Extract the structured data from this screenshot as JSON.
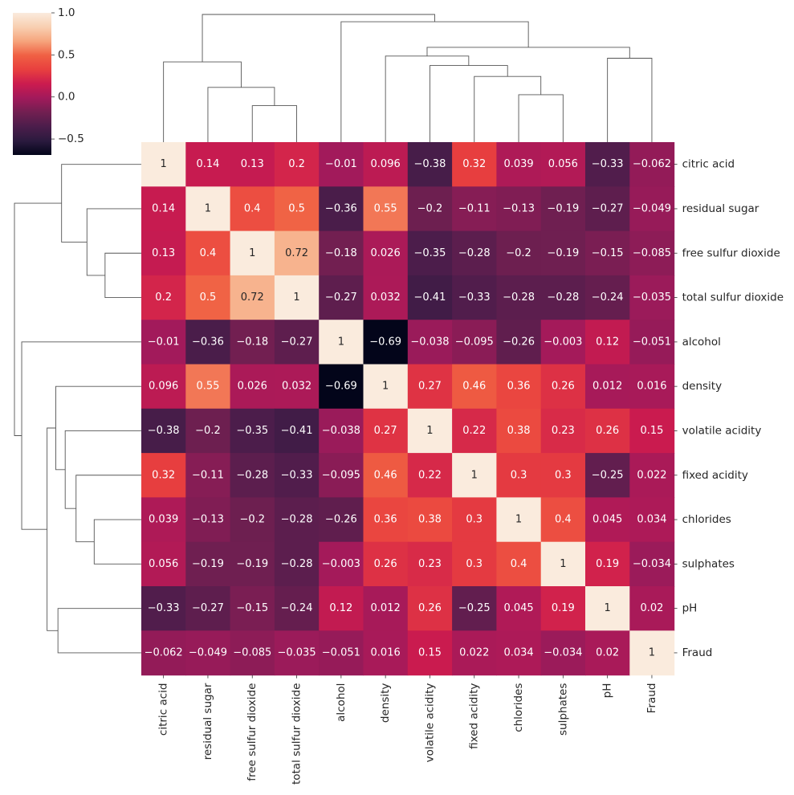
{
  "chart_data": {
    "type": "heatmap",
    "title": "",
    "xlabel": "",
    "ylabel": "",
    "labels": [
      "citric acid",
      "residual sugar",
      "free sulfur dioxide",
      "total sulfur dioxide",
      "alcohol",
      "density",
      "volatile acidity",
      "fixed acidity",
      "chlorides",
      "sulphates",
      "pH",
      "Fraud"
    ],
    "matrix": [
      [
        1,
        0.14,
        0.13,
        0.2,
        -0.01,
        0.096,
        -0.38,
        0.32,
        0.039,
        0.056,
        -0.33,
        -0.062
      ],
      [
        0.14,
        1,
        0.4,
        0.5,
        -0.36,
        0.55,
        -0.2,
        -0.11,
        -0.13,
        -0.19,
        -0.27,
        -0.049
      ],
      [
        0.13,
        0.4,
        1,
        0.72,
        -0.18,
        0.026,
        -0.35,
        -0.28,
        -0.2,
        -0.19,
        -0.15,
        -0.085
      ],
      [
        0.2,
        0.5,
        0.72,
        1,
        -0.27,
        0.032,
        -0.41,
        -0.33,
        -0.28,
        -0.28,
        -0.24,
        -0.035
      ],
      [
        -0.01,
        -0.36,
        -0.18,
        -0.27,
        1,
        -0.69,
        -0.038,
        -0.095,
        -0.26,
        -0.003,
        0.12,
        -0.051
      ],
      [
        0.096,
        0.55,
        0.026,
        0.032,
        -0.69,
        1,
        0.27,
        0.46,
        0.36,
        0.26,
        0.012,
        0.016
      ],
      [
        -0.38,
        -0.2,
        -0.35,
        -0.41,
        -0.038,
        0.27,
        1,
        0.22,
        0.38,
        0.23,
        0.26,
        0.15
      ],
      [
        0.32,
        -0.11,
        -0.28,
        -0.33,
        -0.095,
        0.46,
        0.22,
        1,
        0.3,
        0.3,
        -0.25,
        0.022
      ],
      [
        0.039,
        -0.13,
        -0.2,
        -0.28,
        -0.26,
        0.36,
        0.38,
        0.3,
        1,
        0.4,
        0.045,
        0.034
      ],
      [
        0.056,
        -0.19,
        -0.19,
        -0.28,
        -0.003,
        0.26,
        0.23,
        0.3,
        0.4,
        1,
        0.19,
        -0.034
      ],
      [
        -0.33,
        -0.27,
        -0.15,
        -0.24,
        0.12,
        0.012,
        0.26,
        -0.25,
        0.045,
        0.19,
        1,
        0.02
      ],
      [
        -0.062,
        -0.049,
        -0.085,
        -0.035,
        -0.051,
        0.016,
        0.15,
        0.022,
        0.034,
        -0.034,
        0.02,
        1
      ]
    ],
    "colorbar": {
      "vmin": -0.69,
      "vmax": 1.0,
      "ticks": [
        1.0,
        0.5,
        0.0,
        -0.5
      ],
      "tick_labels": [
        "1.0",
        "0.5",
        "0.0",
        "−0.5"
      ],
      "colormap": "rocket",
      "stops": [
        "#03051a",
        "#2b1a3e",
        "#4c1d4b",
        "#711f51",
        "#a11a5b",
        "#cb1b4f",
        "#e83f3f",
        "#f06043",
        "#f6a47c",
        "#f8cfb1",
        "#faebdd"
      ]
    },
    "dendrogram": {
      "leaf_order": [
        0,
        1,
        2,
        3,
        4,
        5,
        6,
        7,
        8,
        9,
        10,
        11
      ],
      "links": [
        [
          2,
          3,
          0.5
        ],
        [
          1,
          12,
          0.75
        ],
        [
          0,
          13,
          1.1
        ],
        [
          8,
          9,
          0.65
        ],
        [
          7,
          15,
          0.9
        ],
        [
          6,
          16,
          1.05
        ],
        [
          5,
          17,
          1.18
        ],
        [
          10,
          11,
          1.15
        ],
        [
          18,
          19,
          1.3
        ],
        [
          4,
          20,
          1.65
        ],
        [
          14,
          21,
          1.75
        ]
      ],
      "max_height": 1.75
    }
  }
}
